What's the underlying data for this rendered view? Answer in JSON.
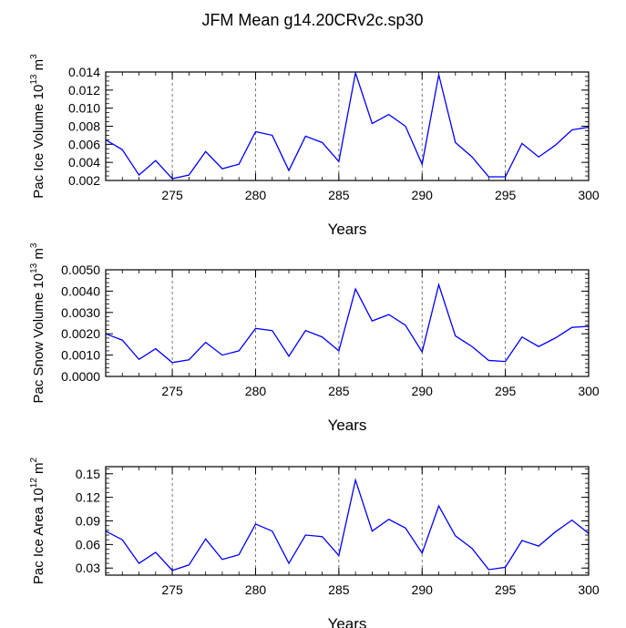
{
  "title": "JFM Mean g14.20CRv2c.sp30",
  "chart_data": [
    {
      "type": "line",
      "ylabel": {
        "prefix": "Pac Ice Volume 10",
        "exponent": "13",
        "unit": " m",
        "unit_exponent": "3"
      },
      "xlabel": "Years",
      "xlim": [
        271,
        300
      ],
      "ylim": [
        0.002,
        0.014
      ],
      "yticks": [
        0.002,
        0.004,
        0.006,
        0.008,
        0.01,
        0.012,
        0.014
      ],
      "ytick_labels": [
        "0.002",
        "0.004",
        "0.006",
        "0.008",
        "0.010",
        "0.012",
        "0.014"
      ],
      "yminor_step": 0.0005,
      "color": "#0000ff",
      "x": [
        271,
        272,
        273,
        274,
        275,
        276,
        277,
        278,
        279,
        280,
        281,
        282,
        283,
        284,
        285,
        286,
        287,
        288,
        289,
        290,
        291,
        292,
        293,
        294,
        295,
        296,
        297,
        298,
        299,
        300
      ],
      "values": [
        0.0065,
        0.0054,
        0.0026,
        0.0042,
        0.0022,
        0.0026,
        0.0052,
        0.0033,
        0.0038,
        0.0074,
        0.007,
        0.0031,
        0.0069,
        0.0062,
        0.0041,
        0.0139,
        0.0083,
        0.0093,
        0.008,
        0.0038,
        0.0137,
        0.0062,
        0.0046,
        0.0024,
        0.0024,
        0.0061,
        0.0046,
        0.0059,
        0.0076,
        0.0079
      ]
    },
    {
      "type": "line",
      "ylabel": {
        "prefix": "Pac Snow Volume 10",
        "exponent": "13",
        "unit": " m",
        "unit_exponent": "3"
      },
      "xlabel": "Years",
      "xlim": [
        271,
        300
      ],
      "ylim": [
        0.0,
        0.005
      ],
      "yticks": [
        0.0,
        0.001,
        0.002,
        0.003,
        0.004,
        0.005
      ],
      "ytick_labels": [
        "0.0000",
        "0.0010",
        "0.0020",
        "0.0030",
        "0.0040",
        "0.0050"
      ],
      "yminor_step": 0.0002,
      "color": "#0000ff",
      "x": [
        271,
        272,
        273,
        274,
        275,
        276,
        277,
        278,
        279,
        280,
        281,
        282,
        283,
        284,
        285,
        286,
        287,
        288,
        289,
        290,
        291,
        292,
        293,
        294,
        295,
        296,
        297,
        298,
        299,
        300
      ],
      "values": [
        0.002,
        0.0017,
        0.0008,
        0.0013,
        0.00065,
        0.00078,
        0.0016,
        0.001,
        0.0012,
        0.00225,
        0.00215,
        0.00095,
        0.00215,
        0.00185,
        0.0012,
        0.0041,
        0.0026,
        0.0029,
        0.0024,
        0.00115,
        0.0043,
        0.0019,
        0.0014,
        0.00075,
        0.0007,
        0.00185,
        0.0014,
        0.0018,
        0.0023,
        0.00235
      ]
    },
    {
      "type": "line",
      "ylabel": {
        "prefix": "Pac Ice Area 10",
        "exponent": "12",
        "unit": " m",
        "unit_exponent": "2"
      },
      "xlabel": "Years",
      "xlim": [
        271,
        300
      ],
      "ylim": [
        0.021,
        0.159
      ],
      "yticks": [
        0.03,
        0.06,
        0.09,
        0.12,
        0.15
      ],
      "ytick_labels": [
        "0.03",
        "0.06",
        "0.09",
        "0.12",
        "0.15"
      ],
      "yminor_step": 0.006,
      "color": "#0000ff",
      "x": [
        271,
        272,
        273,
        274,
        275,
        276,
        277,
        278,
        279,
        280,
        281,
        282,
        283,
        284,
        285,
        286,
        287,
        288,
        289,
        290,
        291,
        292,
        293,
        294,
        295,
        296,
        297,
        298,
        299,
        300
      ],
      "values": [
        0.077,
        0.066,
        0.036,
        0.05,
        0.027,
        0.034,
        0.067,
        0.041,
        0.047,
        0.086,
        0.077,
        0.036,
        0.072,
        0.07,
        0.046,
        0.142,
        0.077,
        0.092,
        0.081,
        0.049,
        0.109,
        0.071,
        0.055,
        0.028,
        0.031,
        0.065,
        0.058,
        0.076,
        0.091,
        0.074
      ]
    }
  ],
  "xticks": [
    275,
    280,
    285,
    290,
    295,
    300
  ],
  "xtick_labels": [
    "275",
    "280",
    "285",
    "290",
    "295",
    "300"
  ],
  "ref_lines_x": [
    275,
    280,
    285,
    290,
    295
  ]
}
